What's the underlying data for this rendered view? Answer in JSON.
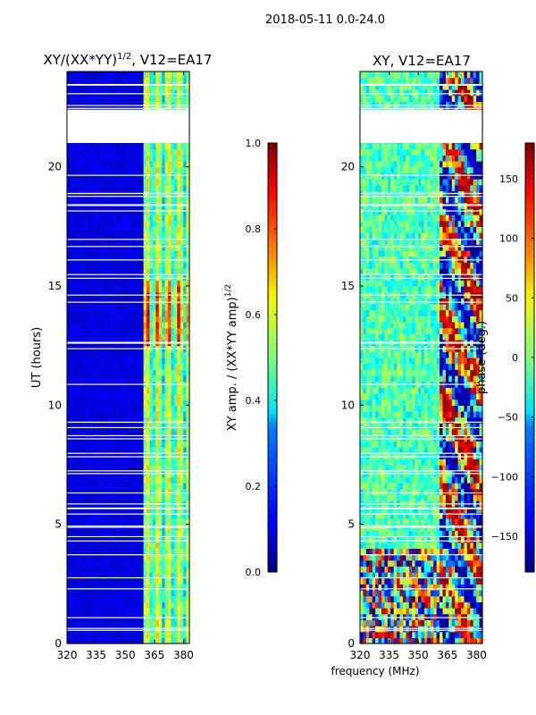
{
  "suptitle": "2018-05-11 0.0-24.0",
  "chart_data": [
    {
      "type": "heatmap",
      "title_main": "XY/(XX*YY)",
      "title_sup": "1/2",
      "title_rest": ", V12=EA17",
      "xlabel": "",
      "ylabel": "UT (hours)",
      "xlim": [
        320,
        383
      ],
      "ylim": [
        0,
        24
      ],
      "xticks": [
        "320",
        "335",
        "350",
        "365",
        "380"
      ],
      "xtick_values": [
        320,
        335,
        350,
        365,
        380
      ],
      "yticks": [
        "0",
        "5",
        "10",
        "15",
        "20"
      ],
      "ytick_values": [
        0,
        5,
        10,
        15,
        20
      ],
      "bright_band_start_mhz": 360,
      "gap_hours": [
        21.0,
        22.4
      ],
      "colorbar": {
        "label_main": "XY amp. / (XX*YY amp)",
        "label_sup": "1/2",
        "range": [
          0.0,
          1.0
        ],
        "ticks": [
          "0.0",
          "0.2",
          "0.4",
          "0.6",
          "0.8",
          "1.0"
        ],
        "tick_values": [
          0.0,
          0.2,
          0.4,
          0.6,
          0.8,
          1.0
        ]
      }
    },
    {
      "type": "heatmap",
      "title": "XY, V12=EA17",
      "xlabel": "frequency (MHz)",
      "ylabel": "",
      "xlim": [
        320,
        383
      ],
      "ylim": [
        0,
        24
      ],
      "xticks": [
        "320",
        "335",
        "350",
        "365",
        "380"
      ],
      "xtick_values": [
        320,
        335,
        350,
        365,
        380
      ],
      "yticks": [
        "0",
        "5",
        "10",
        "15",
        "20"
      ],
      "ytick_values": [
        0,
        5,
        10,
        15,
        20
      ],
      "gap_hours": [
        21.0,
        22.4
      ],
      "colorbar": {
        "label": "phase (deg.)",
        "range": [
          -180,
          180
        ],
        "ticks": [
          "−150",
          "−100",
          "−50",
          "0",
          "50",
          "100",
          "150"
        ],
        "tick_values": [
          -150,
          -100,
          -50,
          0,
          50,
          100,
          150
        ]
      }
    }
  ]
}
